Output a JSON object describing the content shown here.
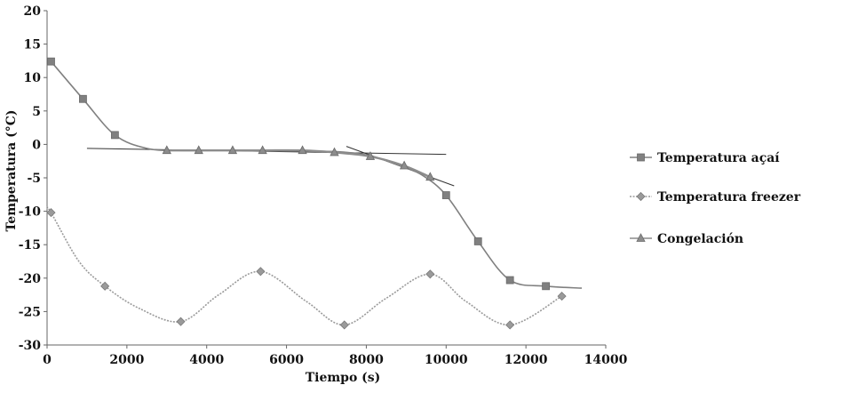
{
  "chart_data": {
    "type": "line",
    "title": "",
    "xlabel": "Tiempo (s)",
    "ylabel": "Temperatura (°C)",
    "xlim": [
      0,
      14000
    ],
    "ylim": [
      -30,
      20
    ],
    "xticks": [
      0,
      2000,
      4000,
      6000,
      8000,
      10000,
      12000,
      14000
    ],
    "yticks": [
      20,
      15,
      10,
      5,
      0,
      -5,
      -10,
      -15,
      -20,
      -25,
      -30
    ],
    "grid": false,
    "legend_position": "right",
    "colors": {
      "acai": "#808080",
      "freezer": "#9a9a9a",
      "congelacion": "#8c8c8c",
      "tangent": "#333333",
      "axis": "#666666"
    },
    "series": [
      {
        "name": "Temperatura açaí",
        "marker": "square",
        "x": [
          100,
          900,
          1700,
          2500,
          3300,
          4100,
          4900,
          5700,
          6500,
          7300,
          8100,
          8900,
          9400,
          10000,
          10800,
          11600,
          12500,
          13400
        ],
        "y": [
          12.4,
          6.8,
          1.4,
          -0.6,
          -0.9,
          -0.9,
          -0.9,
          -0.9,
          -1.0,
          -1.1,
          -1.7,
          -3.3,
          -4.6,
          -7.6,
          -14.5,
          -20.3,
          -21.2,
          -21.5
        ],
        "marker_x": [
          100,
          900,
          1700,
          10000,
          10800,
          11600,
          12500
        ],
        "marker_y": [
          12.4,
          6.8,
          1.4,
          -7.6,
          -14.5,
          -20.3,
          -21.2
        ]
      },
      {
        "name": "Temperatura freezer",
        "marker": "diamond",
        "x": [
          0,
          100,
          800,
          1450,
          2300,
          3350,
          4300,
          5350,
          6500,
          7450,
          8500,
          9600,
          10500,
          11600,
          12900
        ],
        "y": [
          -9.5,
          -10.2,
          -17.5,
          -21.2,
          -24.5,
          -26.5,
          -22.5,
          -19.0,
          -23.5,
          -27.0,
          -23.0,
          -19.4,
          -23.5,
          -27.0,
          -22.7
        ],
        "marker_x": [
          100,
          1450,
          3350,
          5350,
          7450,
          9600,
          11600,
          12900
        ],
        "marker_y": [
          -10.2,
          -21.2,
          -26.5,
          -19.0,
          -27.0,
          -19.4,
          -27.0,
          -22.7
        ]
      },
      {
        "name": "Congelación",
        "marker": "triangle",
        "x": [
          3000,
          3800,
          4650,
          5400,
          6400,
          7200,
          8100,
          8950,
          9600
        ],
        "y": [
          -0.9,
          -0.9,
          -0.9,
          -0.9,
          -0.9,
          -1.2,
          -1.8,
          -3.2,
          -4.9
        ],
        "marker_x": [
          3000,
          3800,
          4650,
          5400,
          6400,
          7200,
          8100,
          8950,
          9600
        ],
        "marker_y": [
          -0.9,
          -0.9,
          -0.9,
          -0.9,
          -0.9,
          -1.2,
          -1.8,
          -3.2,
          -4.9
        ]
      }
    ],
    "tangent_lines": [
      {
        "x": [
          1000,
          10000
        ],
        "y": [
          -0.6,
          -1.5
        ]
      },
      {
        "x": [
          7500,
          10200
        ],
        "y": [
          -0.3,
          -6.2
        ]
      }
    ]
  }
}
